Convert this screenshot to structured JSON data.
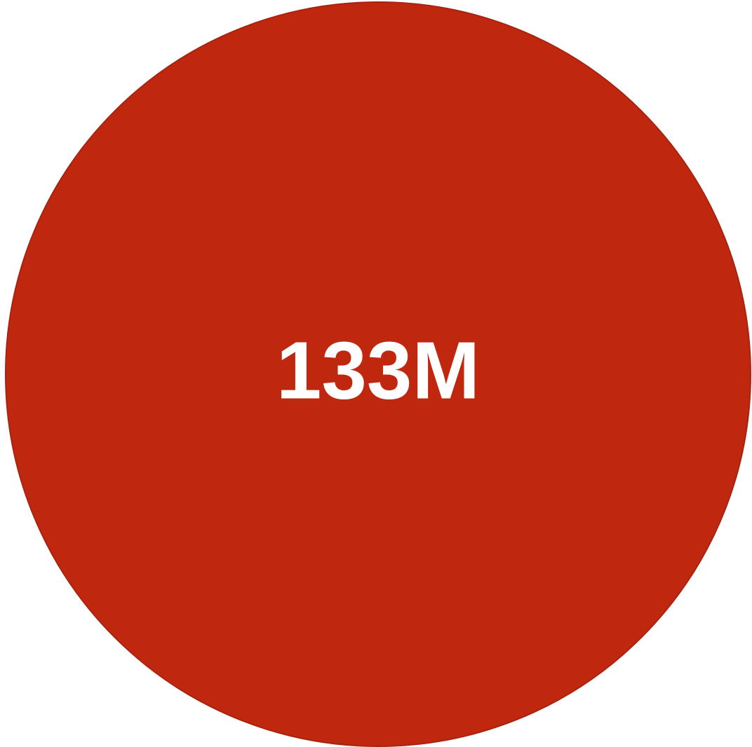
{
  "chart_data": {
    "type": "bubble",
    "bubbles": [
      {
        "label": "133M",
        "value": 133000000,
        "color": "#C0270F",
        "stroke": "#A82310"
      }
    ]
  }
}
